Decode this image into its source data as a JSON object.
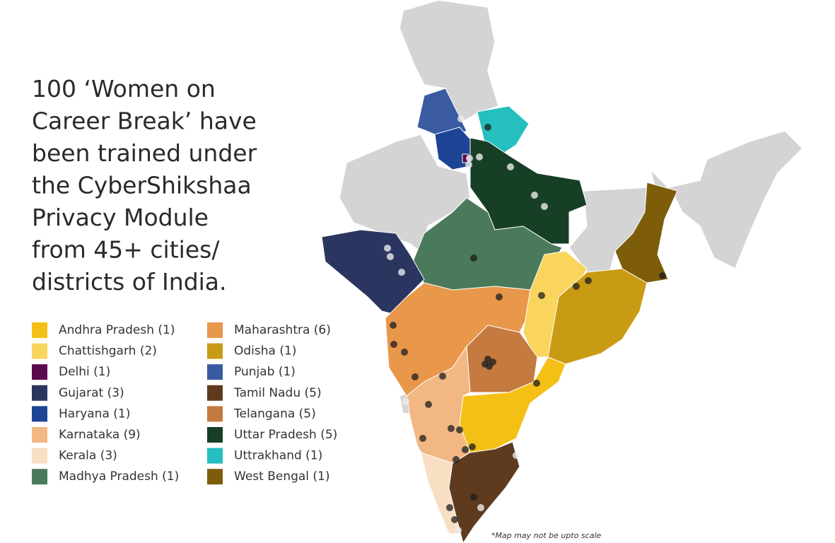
{
  "title_lines": [
    "100 ‘Women on",
    "Career Break’ have",
    "been trained under",
    "the CyberShikshaa",
    "Privacy Module",
    "from 45+ cities/",
    "districts of India."
  ],
  "legend": [
    {
      "label": "Andhra Pradesh (1)",
      "color": "#f5c016"
    },
    {
      "label": "Chattishgarh (2)",
      "color": "#f9d55e"
    },
    {
      "label": "Delhi (1)",
      "color": "#5c0a4f"
    },
    {
      "label": "Gujarat (3)",
      "color": "#2b3660"
    },
    {
      "label": "Haryana (1)",
      "color": "#1e4496"
    },
    {
      "label": "Karnataka (9)",
      "color": "#f2b783"
    },
    {
      "label": "Kerala (3)",
      "color": "#f8dfc4"
    },
    {
      "label": "Madhya Pradesh (1)",
      "color": "#4a7a5a"
    },
    {
      "label": "Maharashtra (6)",
      "color": "#e8974b"
    },
    {
      "label": "Odisha (1)",
      "color": "#c99b15"
    },
    {
      "label": "Punjab (1)",
      "color": "#3a5ba0"
    },
    {
      "label": "Tamil Nadu (5)",
      "color": "#5e3b1e"
    },
    {
      "label": "Telangana (5)",
      "color": "#c57a3f"
    },
    {
      "label": "Uttar Pradesh (5)",
      "color": "#163f26"
    },
    {
      "label": "Uttrakhand (1)",
      "color": "#25bfbf"
    },
    {
      "label": "West Bengal (1)",
      "color": "#7d5c0a"
    }
  ],
  "footnote": "*Map may not be upto scale"
}
